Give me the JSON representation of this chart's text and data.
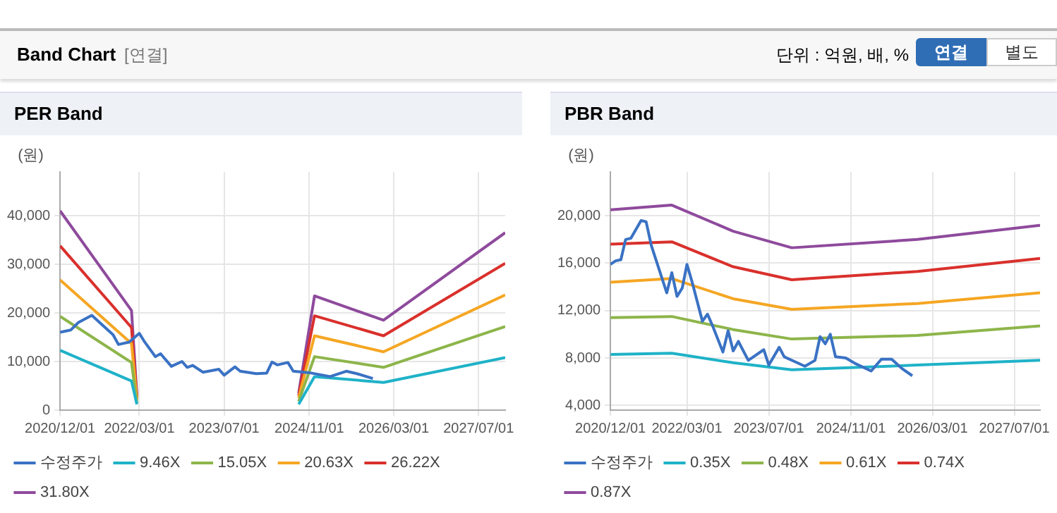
{
  "chart_data": [
    {
      "type": "other",
      "title": "Band Chart",
      "annotations": [
        "[연결]",
        "단위 : 억원, 배, %",
        "연결",
        "별도"
      ]
    },
    {
      "type": "line",
      "title": "PER Band",
      "ylabel": "(원)",
      "xlim": [
        "2020-12-01",
        "2027-12-01"
      ],
      "ylim": [
        0,
        49000
      ],
      "xticks": [
        {
          "value": "2020-12-01",
          "label": "2020/12/01"
        },
        {
          "value": "2022-03-01",
          "label": "2022/03/01"
        },
        {
          "value": "2023-07-01",
          "label": "2023/07/01"
        },
        {
          "value": "2024-11-01",
          "label": "2024/11/01"
        },
        {
          "value": "2026-03-01",
          "label": "2026/03/01"
        },
        {
          "value": "2027-07-01",
          "label": "2027/07/01"
        }
      ],
      "yticks": [
        {
          "value": 0,
          "label": "0"
        },
        {
          "value": 10000,
          "label": "10,000"
        },
        {
          "value": 20000,
          "label": "20,000"
        },
        {
          "value": 30000,
          "label": "30,000"
        },
        {
          "value": 40000,
          "label": "40,000"
        }
      ],
      "grid": true,
      "legend": "bottom",
      "marker": "none",
      "line_style": "solid",
      "x": [
        "2020-12-01",
        "2022-01-15",
        "2022-02-15",
        "2023-06-01",
        "2024-09-01",
        "2024-12-01",
        "2026-01-01",
        "2027-12-01"
      ],
      "series": [
        {
          "name": "수정주가",
          "color": "#3a72c4",
          "x": [
            "2020-12-01",
            "2021-02-01",
            "2021-03-15",
            "2021-06-01",
            "2021-08-01",
            "2021-10-01",
            "2021-11-01",
            "2022-01-01",
            "2022-03-01",
            "2022-04-01",
            "2022-06-01",
            "2022-07-01",
            "2022-09-01",
            "2022-11-01",
            "2022-12-01",
            "2023-01-01",
            "2023-03-01",
            "2023-06-01",
            "2023-07-01",
            "2023-09-01",
            "2023-10-01",
            "2024-01-01",
            "2024-03-01",
            "2024-04-01",
            "2024-05-01",
            "2024-07-01",
            "2024-08-01",
            "2024-11-01",
            "2025-03-01",
            "2025-06-01",
            "2025-08-01",
            "2025-11-01"
          ],
          "values": [
            16000,
            16500,
            18000,
            19500,
            17500,
            15500,
            13500,
            14000,
            15800,
            14000,
            11000,
            11600,
            9000,
            10000,
            8800,
            9200,
            7800,
            8400,
            7200,
            8900,
            8000,
            7500,
            7600,
            9900,
            9300,
            9800,
            8000,
            7700,
            6900,
            8000,
            7500,
            6500
          ]
        },
        {
          "name": "9.46X",
          "color": "#1fb2c8",
          "values": [
            12300,
            6000,
            1200,
            null,
            1200,
            6900,
            5700,
            10800
          ]
        },
        {
          "name": "15.05X",
          "color": "#8db54a",
          "values": [
            19300,
            9800,
            1500,
            null,
            1800,
            11000,
            8800,
            17200
          ]
        },
        {
          "name": "20.63X",
          "color": "#f5a623",
          "values": [
            26800,
            13700,
            2200,
            null,
            2500,
            15300,
            12000,
            23700
          ]
        },
        {
          "name": "26.22X",
          "color": "#d9302c",
          "values": [
            33800,
            17000,
            2500,
            null,
            3000,
            19400,
            15300,
            30200
          ]
        },
        {
          "name": "31.80X",
          "color": "#8e4a9c",
          "values": [
            41000,
            20500,
            3000,
            null,
            3500,
            23500,
            18500,
            36500
          ]
        }
      ]
    },
    {
      "type": "line",
      "title": "PBR Band",
      "ylabel": "(원)",
      "xlim": [
        "2020-12-01",
        "2027-12-01"
      ],
      "ylim": [
        3600,
        23700
      ],
      "xticks": [
        {
          "value": "2020-12-01",
          "label": "2020/12/01"
        },
        {
          "value": "2022-03-01",
          "label": "2022/03/01"
        },
        {
          "value": "2023-07-01",
          "label": "2023/07/01"
        },
        {
          "value": "2024-11-01",
          "label": "2024/11/01"
        },
        {
          "value": "2026-03-01",
          "label": "2026/03/01"
        },
        {
          "value": "2027-07-01",
          "label": "2027/07/01"
        }
      ],
      "yticks": [
        {
          "value": 4000,
          "label": "4,000"
        },
        {
          "value": 8000,
          "label": "8,000"
        },
        {
          "value": 12000,
          "label": "12,000"
        },
        {
          "value": 16000,
          "label": "16,000"
        },
        {
          "value": 20000,
          "label": "20,000"
        }
      ],
      "grid": true,
      "legend": "bottom",
      "marker": "none",
      "line_style": "solid",
      "x": [
        "2020-12-01",
        "2021-12-01",
        "2022-12-01",
        "2023-11-15",
        "2025-12-01",
        "2027-12-01"
      ],
      "series": [
        {
          "name": "수정주가",
          "color": "#3a72c4",
          "x": [
            "2020-12-01",
            "2021-01-01",
            "2021-02-01",
            "2021-03-01",
            "2021-04-01",
            "2021-06-01",
            "2021-07-01",
            "2021-08-01",
            "2021-11-01",
            "2021-12-01",
            "2022-01-01",
            "2022-02-01",
            "2022-03-01",
            "2022-04-01",
            "2022-06-01",
            "2022-07-01",
            "2022-08-01",
            "2022-10-01",
            "2022-11-01",
            "2022-12-01",
            "2023-01-01",
            "2023-03-01",
            "2023-06-01",
            "2023-07-01",
            "2023-09-01",
            "2023-10-01",
            "2023-12-01",
            "2024-02-01",
            "2024-04-01",
            "2024-05-01",
            "2024-06-01",
            "2024-07-01",
            "2024-08-01",
            "2024-10-01",
            "2024-12-01",
            "2025-03-01",
            "2025-05-01",
            "2025-07-01",
            "2025-09-01",
            "2025-11-01"
          ],
          "values": [
            15900,
            16200,
            16300,
            18000,
            18100,
            19600,
            19500,
            17500,
            13500,
            15200,
            13200,
            13900,
            15900,
            14400,
            11100,
            11700,
            10700,
            8500,
            10300,
            8600,
            9400,
            7800,
            8700,
            7400,
            8900,
            8100,
            7700,
            7300,
            7800,
            9800,
            9200,
            10000,
            8100,
            8000,
            7500,
            6900,
            7900,
            7900,
            7100,
            6500
          ]
        },
        {
          "name": "0.35X",
          "color": "#1fb2c8",
          "values": [
            8300,
            8400,
            7600,
            7000,
            7400,
            7800
          ]
        },
        {
          "name": "0.48X",
          "color": "#8db54a",
          "values": [
            11400,
            11500,
            10400,
            9600,
            9900,
            10700
          ]
        },
        {
          "name": "0.61X",
          "color": "#f5a623",
          "values": [
            14400,
            14700,
            13000,
            12100,
            12600,
            13500
          ]
        },
        {
          "name": "0.74X",
          "color": "#d9302c",
          "values": [
            17600,
            17800,
            15700,
            14600,
            15300,
            16400
          ]
        },
        {
          "name": "0.87X",
          "color": "#8e4a9c",
          "values": [
            20500,
            20900,
            18700,
            17300,
            18000,
            19200
          ]
        }
      ]
    }
  ]
}
